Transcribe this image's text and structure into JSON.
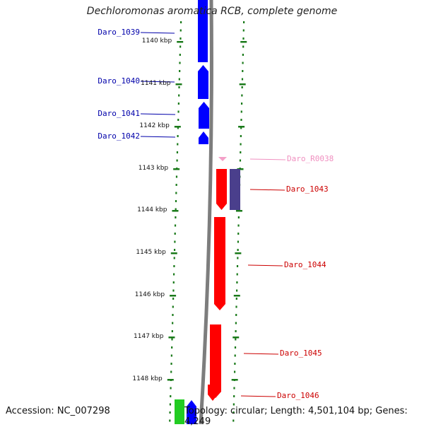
{
  "title": "Dechloromonas aromatica RCB, complete genome",
  "footer": {
    "accession": "Accession: NC_007298",
    "summary": "Topology: circular; Length: 4,501,104 bp; Genes: 4,249"
  },
  "colors": {
    "ruler": "#1a7a1a",
    "backbone": "#7a7a7a",
    "forward_gene": "#0000ff",
    "reverse_gene": "#ff0000",
    "rna_gene": "#f4a0c8",
    "misc_feature": "#4a3f8c",
    "forward_label": "#0000aa",
    "reverse_label": "#cc0000",
    "rna_label": "#f090c0"
  },
  "ruler_ticks": [
    {
      "label": "1140 kbp"
    },
    {
      "label": "1141 kbp"
    },
    {
      "label": "1142 kbp"
    },
    {
      "label": "1143 kbp"
    },
    {
      "label": "1144 kbp"
    },
    {
      "label": "1145 kbp"
    },
    {
      "label": "1146 kbp"
    },
    {
      "label": "1147 kbp"
    },
    {
      "label": "1148 kbp"
    }
  ],
  "genes_forward": [
    {
      "label": "Daro_1039"
    },
    {
      "label": "Daro_1040"
    },
    {
      "label": "Daro_1041"
    },
    {
      "label": "Daro_1042"
    }
  ],
  "genes_reverse": [
    {
      "label": "Daro_R0038"
    },
    {
      "label": "Daro_1043"
    },
    {
      "label": "Daro_1044"
    },
    {
      "label": "Daro_1045"
    },
    {
      "label": "Daro_1046"
    }
  ]
}
